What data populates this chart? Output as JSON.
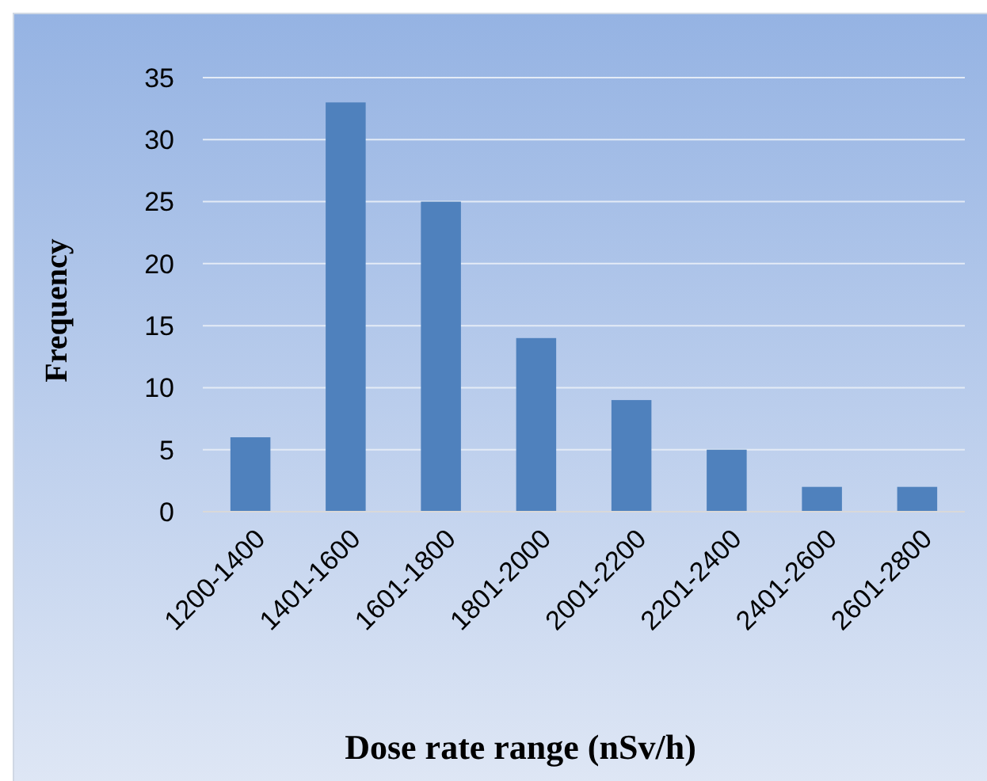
{
  "chart_data": {
    "type": "bar",
    "xlabel": "Dose rate range (nSv/h)",
    "ylabel": "Frequency",
    "categories": [
      "1200-1400",
      "1401-1600",
      "1601-1800",
      "1801-2000",
      "2001-2200",
      "2201-2400",
      "2401-2600",
      "2601-2800"
    ],
    "values": [
      6,
      33,
      25,
      14,
      9,
      5,
      2,
      2
    ],
    "color": "#4f81bd",
    "ylim": [
      0,
      35
    ],
    "yticks": [
      0,
      5,
      10,
      15,
      20,
      25,
      30,
      35
    ],
    "grid": "y"
  }
}
